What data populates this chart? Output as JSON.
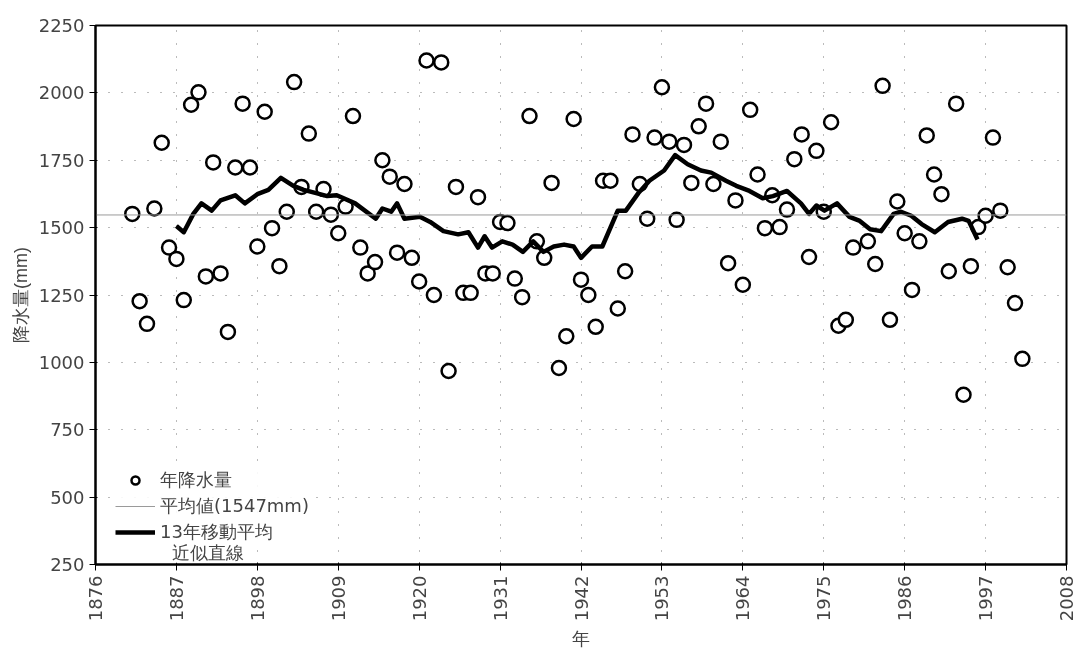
{
  "chart_data": {
    "type": "scatter",
    "xlabel": "年",
    "ylabel": "降水量(mm)",
    "xlim": [
      1876,
      2008
    ],
    "xticks": [
      1876,
      1887,
      1898,
      1909,
      1920,
      1931,
      1942,
      1953,
      1964,
      1975,
      1986,
      1997,
      2008
    ],
    "ylim": [
      250,
      2250
    ],
    "yticks": [
      250,
      500,
      750,
      1000,
      1250,
      1500,
      1750,
      2000,
      2250
    ],
    "grid": true,
    "legend": "bottom left",
    "series": [
      {
        "name": "年降水量",
        "marker": "circle",
        "color": "#000000",
        "x": [
          1881,
          1882,
          1883,
          1884,
          1885,
          1886,
          1887,
          1888,
          1889,
          1890,
          1891,
          1892,
          1893,
          1894,
          1895,
          1896,
          1897,
          1898,
          1899,
          1900,
          1901,
          1902,
          1903,
          1904,
          1905,
          1906,
          1907,
          1908,
          1909,
          1910,
          1911,
          1912,
          1913,
          1914,
          1915,
          1916,
          1917,
          1918,
          1919,
          1920,
          1921,
          1922,
          1923,
          1924,
          1925,
          1926,
          1927,
          1928,
          1929,
          1930,
          1931,
          1932,
          1933,
          1934,
          1935,
          1936,
          1937,
          1938,
          1939,
          1940,
          1941,
          1942,
          1943,
          1944,
          1945,
          1946,
          1947,
          1948,
          1949,
          1950,
          1951,
          1952,
          1953,
          1954,
          1955,
          1956,
          1957,
          1958,
          1959,
          1960,
          1961,
          1962,
          1963,
          1964,
          1965,
          1966,
          1967,
          1968,
          1969,
          1970,
          1971,
          1972,
          1973,
          1974,
          1975,
          1976,
          1977,
          1978,
          1979,
          1981,
          1982,
          1983,
          1984,
          1985,
          1986,
          1987,
          1988,
          1989,
          1990,
          1991,
          1992,
          1993,
          1994,
          1995,
          1996,
          1997,
          1998,
          1999,
          2000,
          2001,
          2002
        ],
        "values": [
          1551,
          1227,
          1143,
          1571,
          1815,
          1426,
          1384,
          1231,
          1956,
          2002,
          1319,
          1742,
          1330,
          1113,
          1723,
          1960,
          1723,
          1430,
          1930,
          1498,
          1357,
          1559,
          2040,
          1651,
          1849,
          1559,
          1643,
          1548,
          1479,
          1578,
          1914,
          1426,
          1330,
          1372,
          1750,
          1689,
          1407,
          1662,
          1388,
          1300,
          2120,
          1250,
          2113,
          968,
          1651,
          1258,
          1258,
          1613,
          1330,
          1330,
          1521,
          1517,
          1311,
          1242,
          1914,
          1449,
          1388,
          1666,
          979,
          1097,
          1903,
          1307,
          1250,
          1132,
          1674,
          1674,
          1200,
          1338,
          1846,
          1662,
          1533,
          1834,
          2021,
          1819,
          1529,
          1807,
          1666,
          1876,
          1960,
          1662,
          1819,
          1368,
          1601,
          1288,
          1937,
          1697,
          1498,
          1620,
          1502,
          1567,
          1754,
          1846,
          1391,
          1785,
          1559,
          1891,
          1136,
          1158,
          1426,
          1449,
          1365,
          2026,
          1158,
          1597,
          1479,
          1269,
          1449,
          1842,
          1697,
          1624,
          1338,
          1960,
          880,
          1357,
          1502,
          1544,
          1834,
          1563,
          1353,
          1220,
          1013
        ]
      },
      {
        "name": "13年移動平均",
        "type": "line",
        "color": "#000000",
        "line_style": "solid",
        "x": [
          1887,
          1888,
          1889.3,
          1890.4,
          1891.8,
          1893,
          1895,
          1896.3,
          1898,
          1899.5,
          1901.2,
          1902.9,
          1904.3,
          1906,
          1907.5,
          1908.8,
          1911.3,
          1914.1,
          1915,
          1916.2,
          1917,
          1918,
          1920.1,
          1921.5,
          1923.3,
          1925.3,
          1926.7,
          1928,
          1928.9,
          1929.9,
          1931.3,
          1932.7,
          1934.1,
          1935.5,
          1936.9,
          1938.3,
          1939.7,
          1941,
          1942,
          1943.5,
          1944.9,
          1947,
          1948.1,
          1949.8,
          1951.3,
          1953.3,
          1954.8,
          1956.5,
          1958.3,
          1959.7,
          1961.7,
          1963.1,
          1964.9,
          1966.7,
          1968.1,
          1970,
          1971.9,
          1973,
          1974,
          1975.1,
          1976.8,
          1978.5,
          1979.9,
          1981.3,
          1982.8,
          1984.5,
          1985.5,
          1986.9,
          1988.3,
          1990.1,
          1991.9,
          1993.8,
          1994.7,
          1995.9
        ],
        "values": [
          1506,
          1483,
          1551,
          1590,
          1563,
          1601,
          1620,
          1590,
          1624,
          1640,
          1685,
          1655,
          1640,
          1628,
          1617,
          1620,
          1590,
          1533,
          1571,
          1559,
          1590,
          1533,
          1540,
          1521,
          1487,
          1475,
          1483,
          1426,
          1468,
          1426,
          1449,
          1437,
          1410,
          1449,
          1410,
          1430,
          1437,
          1430,
          1388,
          1430,
          1430,
          1563,
          1563,
          1628,
          1674,
          1712,
          1769,
          1735,
          1712,
          1704,
          1674,
          1655,
          1636,
          1609,
          1617,
          1636,
          1590,
          1551,
          1582,
          1563,
          1590,
          1540,
          1525,
          1494,
          1487,
          1551,
          1559,
          1544,
          1513,
          1483,
          1521,
          1533,
          1525,
          1456
        ]
      }
    ],
    "ref_lines": [
      {
        "axis": "y",
        "value": 1547,
        "label": "平均値(1547mm)",
        "color": "#9a9a9a",
        "line_style": "solid"
      }
    ],
    "annotations": [
      "近似直線"
    ]
  }
}
